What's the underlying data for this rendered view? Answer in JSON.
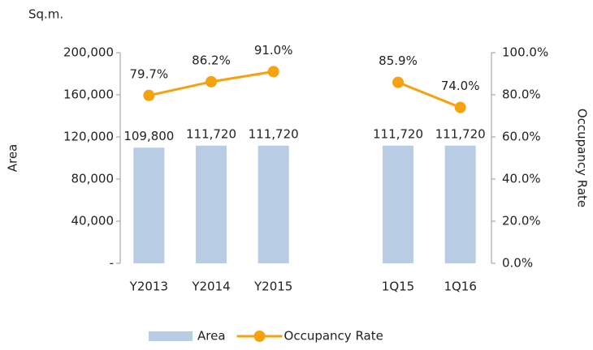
{
  "chart_data": {
    "type": "bar_line",
    "unit_label": "Sq.m.",
    "y_label": "Area",
    "y2_label": "Occupancy Rate",
    "categories": [
      "Y2013",
      "Y2014",
      "Y2015",
      null,
      "1Q15",
      "1Q16"
    ],
    "series": [
      {
        "name": "Area",
        "type": "bar",
        "color": "#b8cce4",
        "values": [
          109800,
          111720,
          111720,
          null,
          111720,
          111720
        ],
        "value_labels": [
          "109,800",
          "111,720",
          "111,720",
          null,
          "111,720",
          "111,720"
        ]
      },
      {
        "name": "Occupancy Rate",
        "type": "line",
        "axis": "y2",
        "color": "#f5a20e",
        "values": [
          79.7,
          86.2,
          91.0,
          null,
          85.9,
          74.0
        ],
        "value_labels": [
          "79.7%",
          "86.2%",
          "91.0%",
          null,
          "85.9%",
          "74.0%"
        ]
      }
    ],
    "ylim": [
      0,
      200000
    ],
    "yticks": [
      {
        "value": 0,
        "label": "-"
      },
      {
        "value": 40000,
        "label": "40,000"
      },
      {
        "value": 80000,
        "label": "80,000"
      },
      {
        "value": 120000,
        "label": "120,000"
      },
      {
        "value": 160000,
        "label": "160,000"
      },
      {
        "value": 200000,
        "label": "200,000"
      }
    ],
    "y2lim": [
      0,
      100
    ],
    "y2ticks": [
      {
        "value": 0,
        "label": "0.0%"
      },
      {
        "value": 20,
        "label": "20.0%"
      },
      {
        "value": 40,
        "label": "40.0%"
      },
      {
        "value": 60,
        "label": "60.0%"
      },
      {
        "value": 80,
        "label": "80.0%"
      },
      {
        "value": 100,
        "label": "100.0%"
      }
    ],
    "legend": "bottom"
  }
}
